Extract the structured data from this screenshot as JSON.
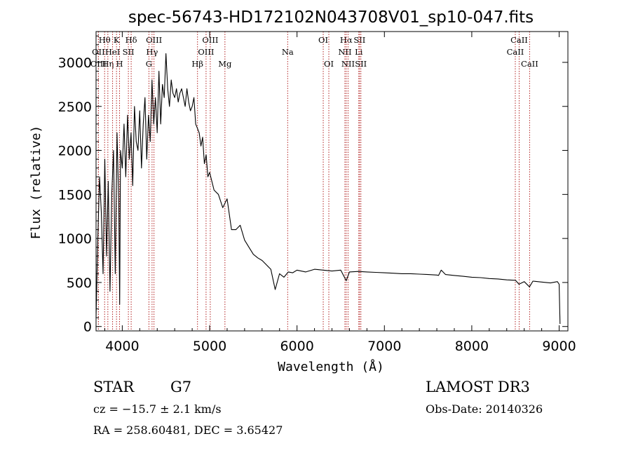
{
  "chart_data": {
    "type": "line",
    "title": "spec-56743-HD172102N043708V01_sp10-047.fits",
    "xlabel": "Wavelength (Å)",
    "ylabel": "Flux (relative)",
    "xlim": [
      3700,
      9100
    ],
    "ylim": [
      -50,
      3350
    ],
    "x_ticks": [
      4000,
      5000,
      6000,
      7000,
      8000,
      9000
    ],
    "y_ticks": [
      0,
      500,
      1000,
      1500,
      2000,
      2500,
      3000
    ],
    "series": [
      {
        "name": "flux",
        "x": [
          3700,
          3720,
          3740,
          3760,
          3780,
          3800,
          3820,
          3840,
          3860,
          3880,
          3900,
          3920,
          3940,
          3960,
          3970,
          3980,
          4000,
          4020,
          4040,
          4060,
          4080,
          4100,
          4120,
          4140,
          4160,
          4180,
          4200,
          4220,
          4240,
          4260,
          4280,
          4300,
          4320,
          4340,
          4360,
          4380,
          4400,
          4420,
          4440,
          4460,
          4480,
          4500,
          4520,
          4540,
          4560,
          4580,
          4600,
          4620,
          4640,
          4660,
          4680,
          4700,
          4720,
          4740,
          4760,
          4780,
          4800,
          4820,
          4840,
          4860,
          4880,
          4900,
          4920,
          4940,
          4960,
          4980,
          5000,
          5050,
          5100,
          5150,
          5200,
          5250,
          5300,
          5350,
          5400,
          5450,
          5500,
          5550,
          5600,
          5650,
          5700,
          5750,
          5800,
          5850,
          5900,
          5950,
          6000,
          6100,
          6200,
          6300,
          6400,
          6500,
          6563,
          6600,
          6700,
          6800,
          6900,
          7000,
          7100,
          7200,
          7300,
          7400,
          7500,
          7600,
          7620,
          7650,
          7700,
          7800,
          7900,
          8000,
          8100,
          8200,
          8300,
          8400,
          8500,
          8540,
          8600,
          8660,
          8700,
          8800,
          8900,
          8980,
          9000,
          9010
        ],
        "values": [
          100,
          1000,
          1700,
          1300,
          600,
          1900,
          800,
          1650,
          400,
          1500,
          2000,
          600,
          2200,
          1400,
          250,
          2000,
          1800,
          2300,
          1700,
          2400,
          1900,
          2200,
          1600,
          2500,
          2100,
          2000,
          2450,
          1800,
          2300,
          2600,
          1900,
          2400,
          2100,
          2800,
          2300,
          2600,
          2200,
          2900,
          2300,
          2750,
          2600,
          3100,
          2700,
          2500,
          2800,
          2650,
          2600,
          2700,
          2550,
          2650,
          2700,
          2600,
          2500,
          2700,
          2550,
          2450,
          2500,
          2600,
          2300,
          2250,
          2200,
          2050,
          2150,
          1850,
          1950,
          1700,
          1750,
          1550,
          1500,
          1350,
          1450,
          1100,
          1100,
          1150,
          980,
          900,
          820,
          780,
          750,
          700,
          650,
          420,
          600,
          560,
          620,
          610,
          640,
          620,
          650,
          640,
          630,
          640,
          520,
          620,
          625,
          620,
          615,
          610,
          605,
          600,
          600,
          595,
          590,
          585,
          580,
          640,
          590,
          580,
          570,
          560,
          555,
          545,
          540,
          530,
          525,
          480,
          510,
          450,
          515,
          505,
          495,
          510,
          480,
          30
        ]
      }
    ],
    "spectral_lines": [
      {
        "label": "Hθ",
        "x": 3798,
        "row": 1
      },
      {
        "label": "OII",
        "x": 3727,
        "row": 2
      },
      {
        "label": "OIII",
        "x": 3727,
        "row": 3
      },
      {
        "label": "Hη",
        "x": 3835,
        "row": 3
      },
      {
        "label": "K",
        "x": 3934,
        "row": 1
      },
      {
        "label": "HeI",
        "x": 3889,
        "row": 2
      },
      {
        "label": "SII",
        "x": 4070,
        "row": 2
      },
      {
        "label": "H",
        "x": 3969,
        "row": 3
      },
      {
        "label": "Hδ",
        "x": 4102,
        "row": 1
      },
      {
        "label": "OIII",
        "x": 4363,
        "row": 1
      },
      {
        "label": "Hγ",
        "x": 4341,
        "row": 2
      },
      {
        "label": "G",
        "x": 4305,
        "row": 3
      },
      {
        "label": "OIII",
        "x": 5007,
        "row": 1
      },
      {
        "label": "OIII",
        "x": 4959,
        "row": 2
      },
      {
        "label": "Hβ",
        "x": 4861,
        "row": 3
      },
      {
        "label": "Mg",
        "x": 5175,
        "row": 3
      },
      {
        "label": "Na",
        "x": 5893,
        "row": 2
      },
      {
        "label": "OI",
        "x": 6300,
        "row": 1
      },
      {
        "label": "OI",
        "x": 6364,
        "row": 3
      },
      {
        "label": "Hα",
        "x": 6563,
        "row": 1
      },
      {
        "label": "SII",
        "x": 6716,
        "row": 1
      },
      {
        "label": "NII",
        "x": 6548,
        "row": 2
      },
      {
        "label": "Li",
        "x": 6707,
        "row": 2
      },
      {
        "label": "NII",
        "x": 6584,
        "row": 3
      },
      {
        "label": "SII",
        "x": 6731,
        "row": 3
      },
      {
        "label": "CaII",
        "x": 8542,
        "row": 1
      },
      {
        "label": "CaII",
        "x": 8498,
        "row": 2
      },
      {
        "label": "CaII",
        "x": 8662,
        "row": 3
      }
    ]
  },
  "info": {
    "object_class": "STAR",
    "subclass": "G7",
    "survey": "LAMOST DR3",
    "redshift_line": "cz = −15.7 ± 2.1 km/s",
    "obs_date": "Obs-Date: 20140326",
    "coords_line": "RA = 258.60481, DEC =   3.65427"
  }
}
